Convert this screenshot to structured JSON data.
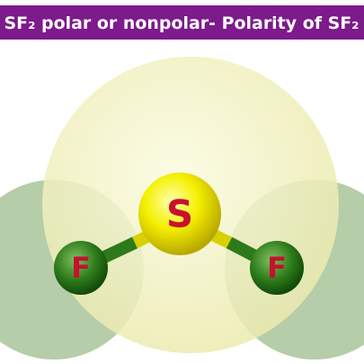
{
  "header": {
    "title": "SF₂ polar or nonpolar- Polarity of SF₂"
  },
  "atoms": [
    {
      "label": "S"
    },
    {
      "label": "F"
    },
    {
      "label": "F"
    }
  ]
}
